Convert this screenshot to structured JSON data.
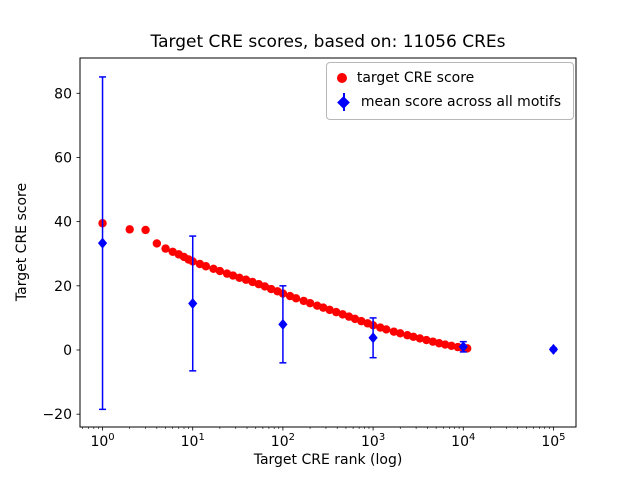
{
  "chart_data": {
    "type": "scatter",
    "title": "Target CRE scores, based on: 11056 CREs",
    "xlabel": "Target CRE rank (log)",
    "ylabel": "Target CRE score",
    "x_scale": "log",
    "xlim_log10": [
      -0.25,
      5.25
    ],
    "ylim": [
      -24,
      91
    ],
    "yticks": [
      -20,
      0,
      20,
      40,
      60,
      80
    ],
    "xticks": [
      1,
      10,
      100,
      1000,
      10000,
      100000
    ],
    "xtick_labels": [
      "10^0",
      "10^1",
      "10^2",
      "10^3",
      "10^4",
      "10^5"
    ],
    "grid": false,
    "legend_position": "upper right",
    "colors": {
      "target_series": "#ff0000",
      "mean_series": "#0000ff"
    },
    "series": [
      {
        "name": "target CRE score",
        "marker": "circle",
        "color": "#ff0000",
        "x": [
          1,
          2,
          3,
          4,
          5,
          6,
          7,
          8,
          9,
          10,
          12,
          14,
          17,
          20,
          24,
          28,
          33,
          39,
          46,
          54,
          63,
          74,
          87,
          100,
          120,
          140,
          170,
          200,
          240,
          280,
          330,
          390,
          460,
          540,
          630,
          740,
          870,
          1000,
          1200,
          1400,
          1700,
          2000,
          2400,
          2800,
          3300,
          3900,
          4600,
          5400,
          6300,
          7400,
          8700,
          10000,
          11056
        ],
        "y": [
          39.5,
          37.6,
          37.4,
          33.2,
          31.6,
          30.6,
          29.8,
          29.0,
          28.2,
          27.6,
          26.8,
          26.1,
          25.3,
          24.6,
          23.8,
          23.2,
          22.5,
          21.9,
          21.2,
          20.5,
          19.8,
          19.0,
          18.3,
          17.6,
          16.8,
          16.1,
          15.3,
          14.6,
          13.8,
          13.2,
          12.5,
          11.8,
          11.1,
          10.4,
          9.7,
          9.0,
          8.3,
          7.7,
          7.0,
          6.4,
          5.7,
          5.2,
          4.6,
          4.1,
          3.6,
          3.1,
          2.6,
          2.1,
          1.7,
          1.3,
          0.9,
          0.6,
          0.5
        ]
      },
      {
        "name": "mean score across all motifs",
        "marker": "diamond",
        "color": "#0000ff",
        "x": [
          1,
          10,
          100,
          1000,
          10000,
          100000
        ],
        "y": [
          33.3,
          14.5,
          8.0,
          3.8,
          1.0,
          0.2
        ],
        "yerr": [
          51.8,
          21.0,
          12.0,
          6.2,
          1.6,
          0.4
        ]
      }
    ]
  }
}
